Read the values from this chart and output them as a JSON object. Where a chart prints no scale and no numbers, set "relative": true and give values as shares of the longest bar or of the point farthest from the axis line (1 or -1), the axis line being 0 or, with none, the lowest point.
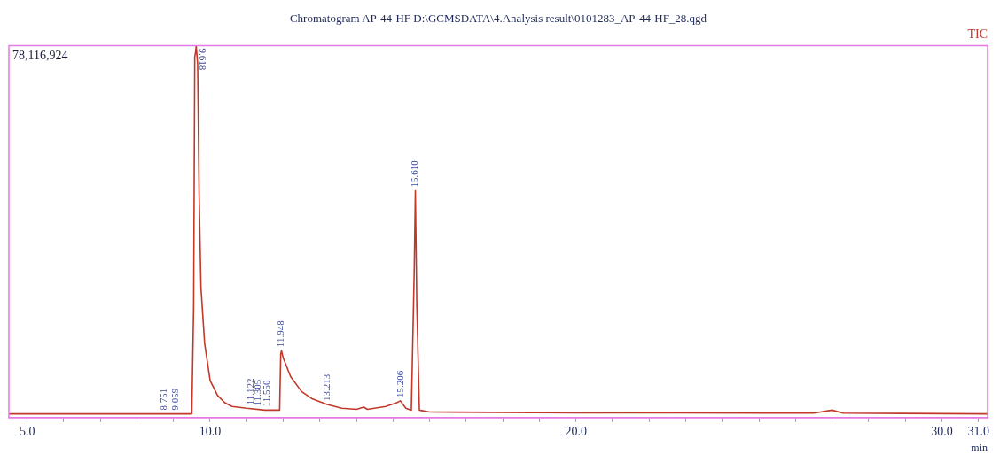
{
  "chart_data": {
    "type": "line",
    "title": "Chromatogram AP-44-HF D:\\GCMSDATA\\4.Analysis result\\0101283_AP-44-HF_28.qgd",
    "xlabel": "min",
    "relative": true,
    "grid": false,
    "legend": false,
    "marker": "none",
    "line_style": "solid",
    "xlim": [
      4.5,
      31.25
    ],
    "xticks": [
      {
        "value": 5,
        "label": "5.0"
      },
      {
        "value": 6,
        "label": null
      },
      {
        "value": 7,
        "label": null
      },
      {
        "value": 8,
        "label": null
      },
      {
        "value": 9,
        "label": null
      },
      {
        "value": 10,
        "label": "10.0"
      },
      {
        "value": 11,
        "label": null
      },
      {
        "value": 12,
        "label": null
      },
      {
        "value": 13,
        "label": null
      },
      {
        "value": 14,
        "label": null
      },
      {
        "value": 15,
        "label": null
      },
      {
        "value": 16,
        "label": null
      },
      {
        "value": 17,
        "label": null
      },
      {
        "value": 18,
        "label": null
      },
      {
        "value": 19,
        "label": null
      },
      {
        "value": 20,
        "label": "20.0"
      },
      {
        "value": 21,
        "label": null
      },
      {
        "value": 22,
        "label": null
      },
      {
        "value": 23,
        "label": null
      },
      {
        "value": 24,
        "label": null
      },
      {
        "value": 25,
        "label": null
      },
      {
        "value": 26,
        "label": null
      },
      {
        "value": 27,
        "label": null
      },
      {
        "value": 28,
        "label": null
      },
      {
        "value": 29,
        "label": null
      },
      {
        "value": 30,
        "label": "30.0"
      },
      {
        "value": 31,
        "label": "31.0"
      }
    ],
    "series": [
      {
        "name": "TIC",
        "color": "#c0392b",
        "x": [
          4.5,
          8.0,
          9.5,
          9.55,
          9.58,
          9.6,
          9.62,
          9.66,
          9.7,
          9.75,
          9.85,
          10.0,
          10.2,
          10.4,
          10.6,
          11.0,
          11.5,
          11.9,
          11.93,
          11.95,
          12.0,
          12.2,
          12.5,
          12.8,
          13.2,
          13.6,
          14.0,
          14.2,
          14.3,
          14.8,
          15.1,
          15.2,
          15.35,
          15.5,
          15.58,
          15.61,
          15.65,
          15.72,
          16.0,
          20.0,
          25.0,
          26.5,
          27.0,
          27.3,
          31.25
        ],
        "values": [
          0.01,
          0.01,
          0.01,
          0.3,
          0.97,
          0.98,
          1,
          0.95,
          0.6,
          0.35,
          0.2,
          0.1,
          0.06,
          0.04,
          0.03,
          0.025,
          0.02,
          0.02,
          0.17,
          0.18,
          0.16,
          0.11,
          0.07,
          0.05,
          0.035,
          0.025,
          0.022,
          0.028,
          0.022,
          0.03,
          0.04,
          0.045,
          0.025,
          0.02,
          0.4,
          0.61,
          0.3,
          0.02,
          0.015,
          0.013,
          0.012,
          0.012,
          0.02,
          0.012,
          0.01
        ]
      }
    ],
    "annotations": [
      "78,116,924",
      {
        "text": "8.751",
        "x": 8.751,
        "y": 0.01
      },
      {
        "text": "9.059",
        "x": 9.059,
        "y": 0.01
      },
      {
        "text": "9.618",
        "x": 9.618,
        "y": 1
      },
      {
        "text": "11.122",
        "x": 11.122,
        "y": 0.025
      },
      {
        "text": "11.305",
        "x": 11.305,
        "y": 0.022
      },
      {
        "text": "11.550",
        "x": 11.55,
        "y": 0.02
      },
      {
        "text": "11.948",
        "x": 11.948,
        "y": 0.18
      },
      {
        "text": "13.213",
        "x": 13.213,
        "y": 0.035
      },
      {
        "text": "15.206",
        "x": 15.206,
        "y": 0.045
      },
      {
        "text": "15.610",
        "x": 15.61,
        "y": 0.61
      }
    ]
  }
}
